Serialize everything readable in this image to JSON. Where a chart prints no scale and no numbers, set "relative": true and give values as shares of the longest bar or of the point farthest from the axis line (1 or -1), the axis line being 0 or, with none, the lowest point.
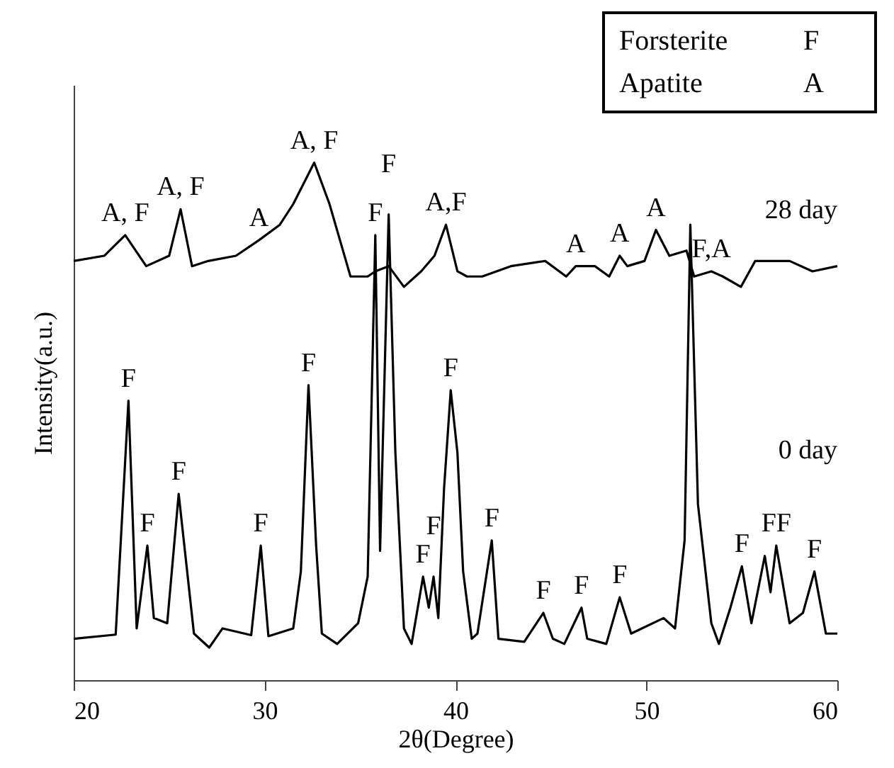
{
  "chart_data": {
    "type": "line",
    "relative": true,
    "xlabel": "2θ(Degree)",
    "ylabel": "Intensity(a.u.)",
    "xlim": [
      20,
      60
    ],
    "xticks": [
      20,
      30,
      40,
      50,
      60
    ],
    "grid": false,
    "line_style": "solid",
    "series": [
      {
        "name": "28 day",
        "color": "#000000",
        "x": [
          20,
          21.6,
          22.7,
          23.8,
          25,
          25.6,
          26.2,
          27.05,
          28.5,
          29.7,
          30.8,
          31.5,
          32.6,
          33.4,
          33.95,
          34.5,
          35.4,
          35.8,
          36.5,
          37.3,
          38.2,
          38.9,
          39.5,
          40.1,
          40.6,
          41.4,
          42.9,
          44.7,
          45.8,
          46.3,
          47.3,
          48.05,
          48.6,
          49,
          49.9,
          50.5,
          51.2,
          52.1,
          52.5,
          53.4,
          54,
          54.95,
          55.7,
          57.5,
          58.7,
          60
        ],
        "values": [
          0.81,
          0.82,
          0.86,
          0.8,
          0.82,
          0.91,
          0.8,
          0.81,
          0.82,
          0.85,
          0.88,
          0.92,
          1.0,
          0.92,
          0.85,
          0.78,
          0.78,
          0.79,
          0.8,
          0.76,
          0.79,
          0.82,
          0.88,
          0.79,
          0.78,
          0.78,
          0.8,
          0.81,
          0.78,
          0.8,
          0.8,
          0.78,
          0.82,
          0.8,
          0.81,
          0.87,
          0.82,
          0.83,
          0.78,
          0.79,
          0.78,
          0.76,
          0.81,
          0.81,
          0.79,
          0.8
        ]
      },
      {
        "name": "0 day",
        "color": "#000000",
        "x": [
          20,
          22.2,
          22.87,
          23.3,
          23.86,
          24.2,
          24.9,
          25.5,
          26.3,
          27.1,
          27.8,
          29.3,
          29.8,
          30.2,
          31.5,
          31.9,
          32.3,
          32.7,
          33,
          33.8,
          34.9,
          35.4,
          35.8,
          36.05,
          36.5,
          36.85,
          37.3,
          37.7,
          38.3,
          38.6,
          38.85,
          39.1,
          39.4,
          39.75,
          40.1,
          40.4,
          40.85,
          41.15,
          41.9,
          42.25,
          43.6,
          44.6,
          45.1,
          45.7,
          46.6,
          46.9,
          47.9,
          48.6,
          49.2,
          50.9,
          51.5,
          52,
          52.3,
          52.7,
          53.4,
          53.8,
          54.4,
          55,
          55.5,
          56.2,
          56.5,
          56.8,
          57.5,
          58.2,
          58.8,
          59.4,
          60
        ],
        "values": [
          0.08,
          0.088,
          0.54,
          0.1,
          0.26,
          0.12,
          0.11,
          0.36,
          0.09,
          0.063,
          0.1,
          0.087,
          0.26,
          0.085,
          0.1,
          0.21,
          0.57,
          0.26,
          0.09,
          0.07,
          0.11,
          0.2,
          0.86,
          0.25,
          0.9,
          0.44,
          0.1,
          0.07,
          0.2,
          0.14,
          0.2,
          0.12,
          0.37,
          0.56,
          0.44,
          0.21,
          0.08,
          0.09,
          0.27,
          0.08,
          0.074,
          0.13,
          0.08,
          0.07,
          0.14,
          0.08,
          0.07,
          0.16,
          0.09,
          0.12,
          0.1,
          0.27,
          0.88,
          0.34,
          0.11,
          0.07,
          0.14,
          0.22,
          0.11,
          0.24,
          0.17,
          0.26,
          0.11,
          0.13,
          0.21,
          0.09,
          0.09
        ]
      }
    ],
    "annotations": [
      "Forsterite F",
      "Apatite A",
      {
        "text": "A, F",
        "x": 22.7,
        "y": 0.86
      },
      {
        "text": "A, F",
        "x": 25.6,
        "y": 0.91
      },
      {
        "text": "A",
        "x": 29.7,
        "y": 0.85
      },
      {
        "text": "A, F",
        "x": 32.6,
        "y": 1.0
      },
      {
        "text": "F",
        "x": 35.8,
        "y": 0.86
      },
      {
        "text": "F",
        "x": 36.5,
        "y": 0.9
      },
      {
        "text": "A,F",
        "x": 39.5,
        "y": 0.88
      },
      {
        "text": "A",
        "x": 46.3,
        "y": 0.8
      },
      {
        "text": "A",
        "x": 48.6,
        "y": 0.82
      },
      {
        "text": "A",
        "x": 50.5,
        "y": 0.87
      },
      {
        "text": "F,A",
        "x": 53.4,
        "y": 0.79
      },
      {
        "text": "F",
        "x": 22.87,
        "y": 0.54
      },
      {
        "text": "F",
        "x": 23.86,
        "y": 0.26
      },
      {
        "text": "F",
        "x": 25.5,
        "y": 0.36
      },
      {
        "text": "F",
        "x": 29.8,
        "y": 0.26
      },
      {
        "text": "F",
        "x": 32.3,
        "y": 0.57
      },
      {
        "text": "F",
        "x": 38.3,
        "y": 0.2
      },
      {
        "text": "F",
        "x": 38.85,
        "y": 0.2
      },
      {
        "text": "F",
        "x": 39.75,
        "y": 0.56
      },
      {
        "text": "F",
        "x": 41.9,
        "y": 0.27
      },
      {
        "text": "F",
        "x": 44.6,
        "y": 0.13
      },
      {
        "text": "F",
        "x": 46.6,
        "y": 0.14
      },
      {
        "text": "F",
        "x": 48.6,
        "y": 0.16
      },
      {
        "text": "F",
        "x": 55,
        "y": 0.22
      },
      {
        "text": "FF",
        "x": 56.8,
        "y": 0.26
      },
      {
        "text": "F",
        "x": 58.8,
        "y": 0.21
      }
    ]
  }
}
